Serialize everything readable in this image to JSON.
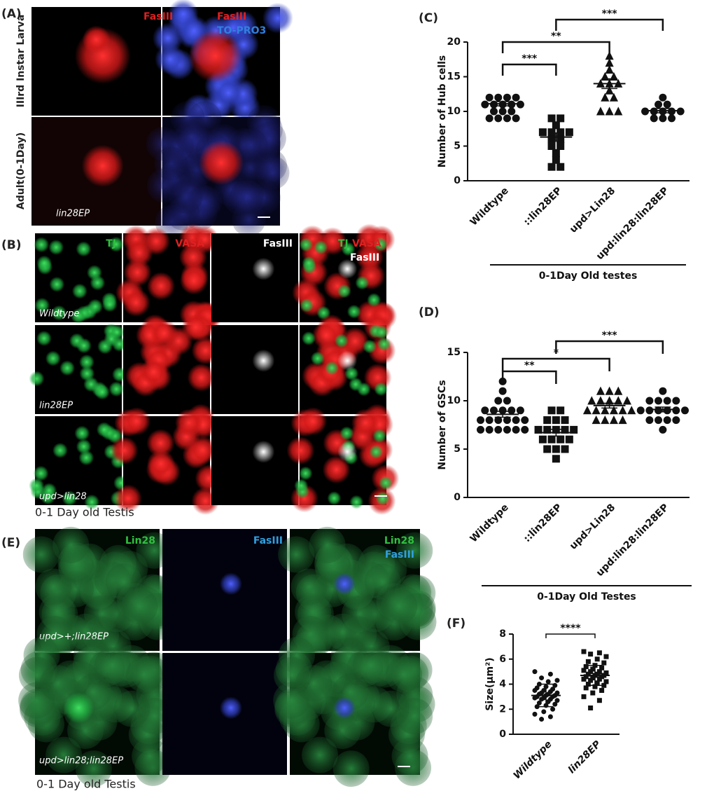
{
  "panel_a": {
    "label": "(A)",
    "row_labels": [
      "IIIrd Instar Larva",
      "Adult(0-1Day)"
    ],
    "channel_1": "FasIII",
    "channel_2a": "FasIII",
    "channel_2b": "TO-PRO3",
    "genotype": "lin28EP"
  },
  "panel_b": {
    "label": "(B)",
    "headers": [
      "TJ",
      "VASA",
      "FasIII"
    ],
    "merge": [
      "TJ",
      "VASA",
      "FasIII"
    ],
    "rows": [
      "Wildtype",
      "lin28EP",
      "upd>lin28"
    ],
    "caption": "0-1 Day old Testis"
  },
  "panel_e": {
    "label": "(E)",
    "headers": [
      "Lin28",
      "FasIII"
    ],
    "merge": [
      "Lin28",
      "FasIII"
    ],
    "rows": [
      "upd>+;lin28EP",
      "upd>lin28;lin28EP"
    ],
    "caption": "0-1 Day old Testis"
  },
  "chart_data": [
    {
      "type": "dotplot",
      "label": "(C)",
      "ylabel": "Number of Hub cells",
      "categories": [
        "Wildtype",
        "::lin28EP",
        "upd>Lin28",
        "upd:lin28:lin28EP"
      ],
      "groups": [
        {
          "marker": "circle",
          "values": [
            12,
            12,
            12,
            12,
            11,
            11,
            11,
            11,
            11,
            10,
            10,
            10,
            9,
            9,
            9,
            9
          ],
          "mean": 11.1,
          "error": 0.3
        },
        {
          "marker": "square",
          "values": [
            9,
            9,
            8,
            7,
            7,
            7,
            7,
            6,
            6,
            5,
            5,
            4,
            3,
            2,
            2
          ],
          "mean": 6.3,
          "error": 0.6
        },
        {
          "marker": "triangle",
          "values": [
            18,
            17,
            16,
            15,
            15,
            14,
            14,
            14,
            13,
            12,
            12,
            10,
            10,
            10
          ],
          "mean": 14,
          "error": 0.7
        },
        {
          "marker": "circle",
          "values": [
            12,
            11,
            11,
            10,
            10,
            10,
            10,
            10,
            9,
            9,
            9
          ],
          "mean": 10.1,
          "error": 0.3
        }
      ],
      "ylim": [
        0,
        20
      ],
      "yticks": [
        0,
        5,
        10,
        15,
        20
      ],
      "brackets": [
        {
          "from": 0,
          "to": 1,
          "text": "***"
        },
        {
          "from": 0,
          "to": 2,
          "text": "**"
        },
        {
          "from": 1,
          "to": 3,
          "text": "***"
        }
      ],
      "footer": "0-1Day Old  testes"
    },
    {
      "type": "dotplot",
      "label": "(D)",
      "ylabel": "Number of GSCs",
      "categories": [
        "Wildtype",
        "::lin28EP",
        "upd>Lin28",
        "upd:lin28:lin28EP"
      ],
      "groups": [
        {
          "marker": "circle",
          "values": [
            12,
            11,
            10,
            10,
            9,
            9,
            9,
            9,
            9,
            8,
            8,
            8,
            8,
            8,
            8,
            7,
            7,
            7,
            7,
            7,
            7
          ],
          "mean": 8.6,
          "error": 0.3
        },
        {
          "marker": "square",
          "values": [
            9,
            9,
            8,
            8,
            8,
            7,
            7,
            7,
            7,
            7,
            6,
            6,
            6,
            6,
            5,
            5,
            5,
            4
          ],
          "mean": 6.7,
          "error": 0.35
        },
        {
          "marker": "triangle",
          "values": [
            11,
            11,
            11,
            10,
            10,
            10,
            10,
            10,
            9,
            9,
            9,
            9,
            9,
            9,
            8,
            8,
            8,
            8
          ],
          "mean": 9.5,
          "error": 0.25
        },
        {
          "marker": "circle",
          "values": [
            11,
            10,
            10,
            10,
            10,
            9,
            9,
            9,
            9,
            9,
            9,
            8,
            8,
            8,
            8,
            7
          ],
          "mean": 9.1,
          "error": 0.25
        }
      ],
      "ylim": [
        0,
        15
      ],
      "yticks": [
        0,
        5,
        10,
        15
      ],
      "brackets": [
        {
          "from": 0,
          "to": 1,
          "text": "**"
        },
        {
          "from": 0,
          "to": 2,
          "text": "*"
        },
        {
          "from": 1,
          "to": 3,
          "text": "***"
        }
      ],
      "footer": "0-1Day Old Testes"
    },
    {
      "type": "dotplot",
      "label": "(F)",
      "ylabel": "Size(μm²)",
      "categories": [
        "Wildtype",
        "lin28EP"
      ],
      "groups": [
        {
          "marker": "circle",
          "values": [
            5.0,
            4.8,
            4.5,
            4.3,
            4.2,
            4.0,
            3.9,
            3.8,
            3.7,
            3.6,
            3.5,
            3.5,
            3.4,
            3.3,
            3.3,
            3.2,
            3.2,
            3.1,
            3.1,
            3.0,
            3.0,
            2.9,
            2.9,
            2.8,
            2.8,
            2.7,
            2.6,
            2.5,
            2.4,
            2.3,
            2.2,
            2.0,
            1.8,
            1.6,
            1.4,
            1.2
          ],
          "mean": 3.1,
          "error": 0.9
        },
        {
          "marker": "square",
          "values": [
            6.6,
            6.5,
            6.4,
            6.2,
            6.0,
            5.8,
            5.7,
            5.5,
            5.4,
            5.3,
            5.2,
            5.1,
            5.0,
            5.0,
            4.9,
            4.8,
            4.8,
            4.7,
            4.7,
            4.6,
            4.6,
            4.5,
            4.4,
            4.4,
            4.3,
            4.2,
            4.1,
            4.0,
            3.9,
            3.8,
            3.7,
            3.5,
            3.3,
            3.0,
            2.7,
            2.1
          ],
          "mean": 4.7,
          "error": 0.8
        }
      ],
      "ylim": [
        0,
        8
      ],
      "yticks": [
        0,
        2,
        4,
        6,
        8
      ],
      "brackets": [
        {
          "from": 0,
          "to": 1,
          "text": "****"
        }
      ]
    }
  ]
}
